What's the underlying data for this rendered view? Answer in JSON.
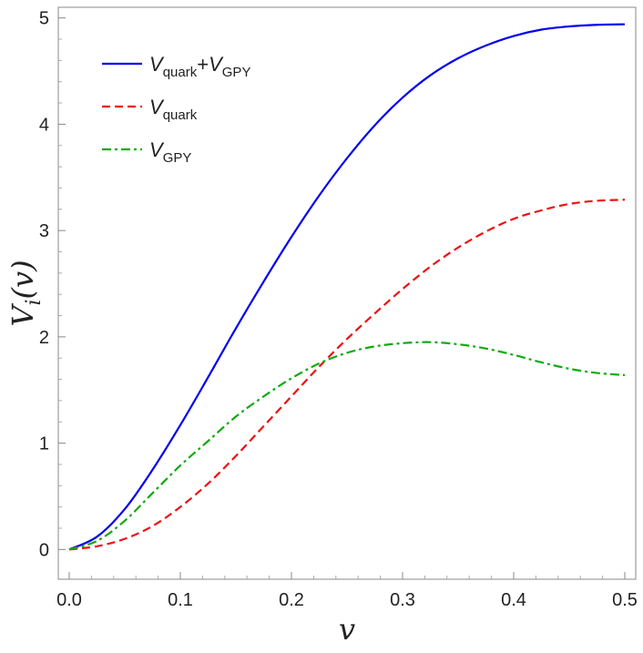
{
  "chart_data": {
    "type": "line",
    "title": "",
    "xlabel": "v",
    "ylabel": "V_i(v)",
    "xlim": [
      0,
      0.5
    ],
    "ylim": [
      -0.28,
      5.1
    ],
    "x_ticks": [
      "0.0",
      "0.1",
      "0.2",
      "0.3",
      "0.4",
      "0.5"
    ],
    "y_ticks": [
      "0",
      "1",
      "2",
      "3",
      "4",
      "5"
    ],
    "grid": false,
    "legend_position": "top-left",
    "x": [
      0.0,
      0.025,
      0.05,
      0.075,
      0.1,
      0.125,
      0.15,
      0.175,
      0.2,
      0.225,
      0.25,
      0.275,
      0.3,
      0.325,
      0.35,
      0.375,
      0.4,
      0.425,
      0.45,
      0.475,
      0.5
    ],
    "series": [
      {
        "name": "V_quark+V_GPY",
        "legend": {
          "main1": "V",
          "sub1": "quark",
          "plus": "+",
          "main2": "V",
          "sub2": "GPY"
        },
        "color": "#0000ee",
        "dash": "solid",
        "values": [
          0.0,
          0.12,
          0.38,
          0.75,
          1.17,
          1.62,
          2.08,
          2.52,
          2.94,
          3.33,
          3.68,
          3.99,
          4.25,
          4.46,
          4.62,
          4.74,
          4.83,
          4.89,
          4.92,
          4.935,
          4.94
        ]
      },
      {
        "name": "V_quark",
        "legend": {
          "main1": "V",
          "sub1": "quark",
          "plus": "",
          "main2": "",
          "sub2": ""
        },
        "color": "#ee1111",
        "dash": "dashed",
        "values": [
          0.0,
          0.03,
          0.1,
          0.22,
          0.4,
          0.62,
          0.88,
          1.16,
          1.44,
          1.72,
          1.98,
          2.22,
          2.45,
          2.66,
          2.84,
          2.99,
          3.11,
          3.19,
          3.25,
          3.28,
          3.29
        ]
      },
      {
        "name": "V_GPY",
        "legend": {
          "main1": "V",
          "sub1": "GPY",
          "plus": "",
          "main2": "",
          "sub2": ""
        },
        "color": "#11aa11",
        "dash": "dashdot",
        "values": [
          0.0,
          0.08,
          0.27,
          0.53,
          0.79,
          1.02,
          1.25,
          1.44,
          1.61,
          1.75,
          1.85,
          1.91,
          1.94,
          1.95,
          1.93,
          1.89,
          1.83,
          1.76,
          1.7,
          1.66,
          1.64
        ]
      }
    ]
  }
}
